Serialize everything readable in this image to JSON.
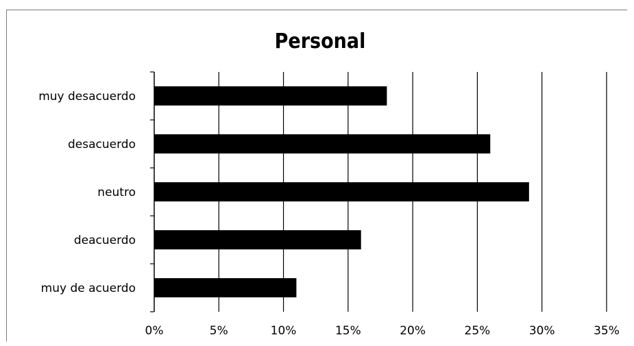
{
  "chart_data": {
    "type": "bar",
    "orientation": "horizontal",
    "title": "Personal",
    "categories": [
      "muy desacuerdo",
      "desacuerdo",
      "neutro",
      "deacuerdo",
      "muy de acuerdo"
    ],
    "values": [
      18,
      26,
      29,
      16,
      11
    ],
    "value_unit": "%",
    "xlim": [
      0,
      35
    ],
    "x_ticks": [
      "0%",
      "5%",
      "10%",
      "15%",
      "20%",
      "25%",
      "30%",
      "35%"
    ],
    "grid": "vertical",
    "legend": "none",
    "bar_color": "#000000"
  }
}
